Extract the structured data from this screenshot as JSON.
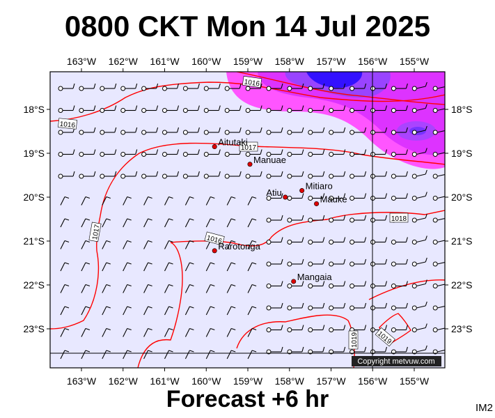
{
  "title": "0800 CKT Mon 14 Jul 2025",
  "subtitle": "Forecast +6 hr",
  "corner_code": "IM2",
  "copyright": "Copyright metvuw.com",
  "map": {
    "lon_labels": [
      "163°W",
      "162°W",
      "161°W",
      "160°W",
      "159°W",
      "158°W",
      "157°W",
      "156°W",
      "155°W"
    ],
    "lat_labels": [
      "18°S",
      "19°S",
      "20°S",
      "21°S",
      "22°S",
      "23°S"
    ],
    "places": [
      {
        "name": "Aitutaki",
        "lon": -159.8,
        "lat": -18.85
      },
      {
        "name": "Manuae",
        "lon": -158.95,
        "lat": -19.25
      },
      {
        "name": "Atiu",
        "lon": -158.1,
        "lat": -20.0
      },
      {
        "name": "Mitiaro",
        "lon": -157.7,
        "lat": -19.85
      },
      {
        "name": "Mauke",
        "lon": -157.35,
        "lat": -20.15
      },
      {
        "name": "Rarotonga",
        "lon": -159.8,
        "lat": -21.22
      },
      {
        "name": "Mangaia",
        "lon": -157.9,
        "lat": -21.92
      }
    ],
    "isobar_labels": [
      "1016",
      "1016",
      "1017",
      "1017",
      "1018",
      "1016",
      "1019",
      "1019"
    ],
    "colors": {
      "background": "#e8e8ff",
      "isobar": "#ff0000",
      "rain_light": "#ff55ff",
      "rain_mid": "#cc33ff",
      "rain_heavy": "#6633ff",
      "rain_max": "#0000ff",
      "place": "#dd0000"
    }
  }
}
